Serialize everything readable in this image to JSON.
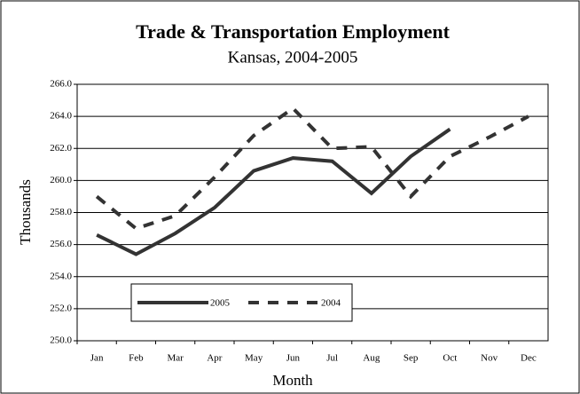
{
  "chart_data": {
    "type": "line",
    "title": "Trade & Transportation Employment",
    "subtitle": "Kansas, 2004-2005",
    "x_label": "Month",
    "y_label": "Thousands",
    "categories": [
      "Jan",
      "Feb",
      "Mar",
      "Apr",
      "May",
      "Jun",
      "Jul",
      "Aug",
      "Sep",
      "Oct",
      "Nov",
      "Dec"
    ],
    "series": [
      {
        "name": "2005",
        "color": "#333333",
        "style": "solid",
        "values": [
          256.6,
          255.4,
          256.7,
          258.3,
          260.6,
          261.4,
          261.2,
          259.2,
          261.5,
          263.2,
          null,
          null
        ]
      },
      {
        "name": "2004",
        "color": "#333333",
        "style": "dashed",
        "values": [
          259.0,
          257.0,
          257.8,
          260.2,
          262.8,
          264.5,
          262.0,
          262.1,
          259.0,
          261.5,
          262.7,
          264.0
        ]
      }
    ],
    "ylim": [
      250,
      266
    ],
    "yticks": [
      {
        "value": 250,
        "label": "250.0"
      },
      {
        "value": 252,
        "label": "252.0"
      },
      {
        "value": 254,
        "label": "254.0"
      },
      {
        "value": 256,
        "label": "256.0"
      },
      {
        "value": 258,
        "label": "258.0"
      },
      {
        "value": 260,
        "label": "260.0"
      },
      {
        "value": 262,
        "label": "262.0"
      },
      {
        "value": 264,
        "label": "264.0"
      },
      {
        "value": 266,
        "label": "266.0"
      }
    ],
    "grid": true
  }
}
